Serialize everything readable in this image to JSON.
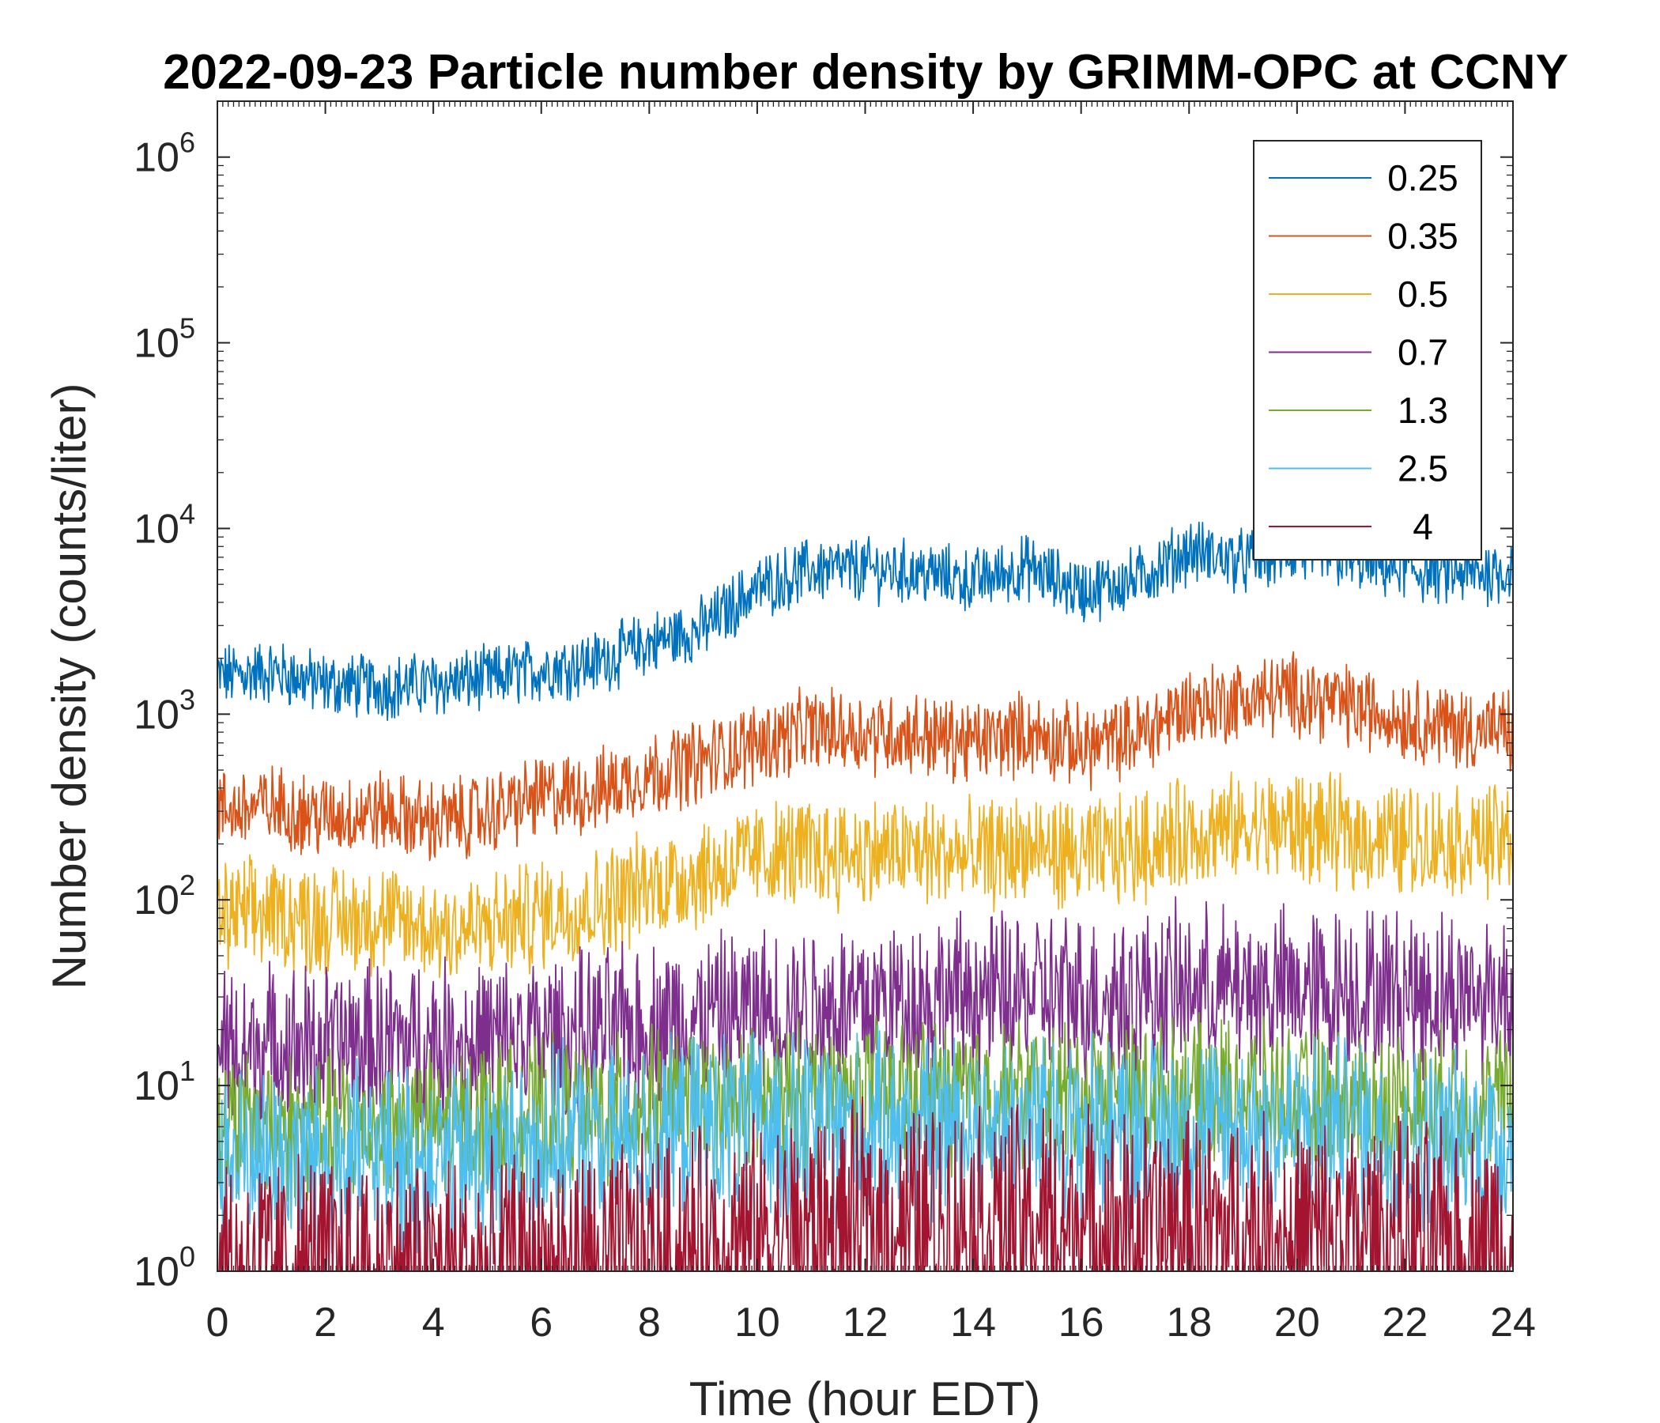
{
  "chart_data": {
    "type": "line",
    "title": "2022-09-23 Particle number density by GRIMM-OPC at CCNY",
    "xlabel": "Time (hour EDT)",
    "ylabel": "Number density (counts/liter)",
    "xlim": [
      0,
      24
    ],
    "ylim": [
      1,
      2000000
    ],
    "yscale": "log",
    "xticks": [
      "0",
      "2",
      "4",
      "6",
      "8",
      "10",
      "12",
      "14",
      "16",
      "18",
      "20",
      "22",
      "24"
    ],
    "yticks": [
      {
        "base": "10",
        "exp": "0",
        "value": 1
      },
      {
        "base": "10",
        "exp": "1",
        "value": 10
      },
      {
        "base": "10",
        "exp": "2",
        "value": 100
      },
      {
        "base": "10",
        "exp": "3",
        "value": 1000
      },
      {
        "base": "10",
        "exp": "4",
        "value": 10000
      },
      {
        "base": "10",
        "exp": "5",
        "value": 100000
      },
      {
        "base": "10",
        "exp": "6",
        "value": 1000000
      }
    ],
    "legend_position": "top-right",
    "x": [
      0,
      1,
      2,
      3,
      4,
      5,
      6,
      7,
      8,
      9,
      10,
      11,
      12,
      13,
      14,
      15,
      16,
      17,
      18,
      19,
      20,
      21,
      22,
      23,
      24
    ],
    "series": [
      {
        "name": "0.25",
        "color": "#0072BD",
        "noise": 0.35,
        "values": [
          1600,
          1700,
          1450,
          1400,
          1450,
          1550,
          1750,
          1900,
          2400,
          2900,
          4800,
          6000,
          6000,
          5800,
          5200,
          6200,
          4600,
          5300,
          7600,
          6600,
          7500,
          6800,
          6000,
          5600,
          6000
        ]
      },
      {
        "name": "0.35",
        "color": "#D95319",
        "noise": 0.45,
        "values": [
          300,
          320,
          280,
          300,
          260,
          290,
          360,
          380,
          480,
          560,
          700,
          820,
          800,
          780,
          700,
          800,
          660,
          760,
          1100,
          1200,
          1300,
          1100,
          950,
          850,
          800
        ]
      },
      {
        "name": "0.5",
        "color": "#EDB120",
        "noise": 0.6,
        "values": [
          80,
          85,
          78,
          80,
          70,
          70,
          85,
          95,
          120,
          140,
          170,
          180,
          180,
          180,
          170,
          190,
          170,
          190,
          230,
          240,
          250,
          220,
          210,
          210,
          210
        ]
      },
      {
        "name": "0.7",
        "color": "#7E2F8E",
        "noise": 0.9,
        "values": [
          15,
          16,
          16,
          17,
          17,
          17,
          18,
          19,
          21,
          23,
          25,
          27,
          28,
          29,
          30,
          31,
          30,
          31,
          33,
          33,
          32,
          33,
          32,
          31,
          32
        ]
      },
      {
        "name": "1.3",
        "color": "#77AC30",
        "noise": 0.8,
        "values": [
          6,
          6,
          6,
          6,
          6,
          7,
          7,
          7,
          8,
          8,
          8,
          9,
          9,
          9,
          9,
          9,
          9,
          9,
          9,
          9,
          8,
          8,
          8,
          8,
          8
        ]
      },
      {
        "name": "2.5",
        "color": "#4DBEEE",
        "noise": 1.0,
        "values": [
          4,
          4,
          4,
          4,
          4,
          4,
          5,
          5,
          5,
          6,
          6,
          6,
          6,
          6,
          6,
          6,
          6,
          6,
          6,
          6,
          6,
          6,
          5,
          5,
          5
        ]
      },
      {
        "name": "4",
        "color": "#A2142F",
        "noise": 1.3,
        "values": [
          1,
          1,
          1,
          1,
          1,
          1,
          1,
          1,
          1.2,
          1.3,
          1.5,
          1.6,
          1.7,
          1.8,
          1.8,
          1.8,
          1.7,
          1.6,
          1.6,
          1.6,
          1.5,
          1.5,
          1.4,
          1.4,
          1.3
        ]
      }
    ]
  }
}
